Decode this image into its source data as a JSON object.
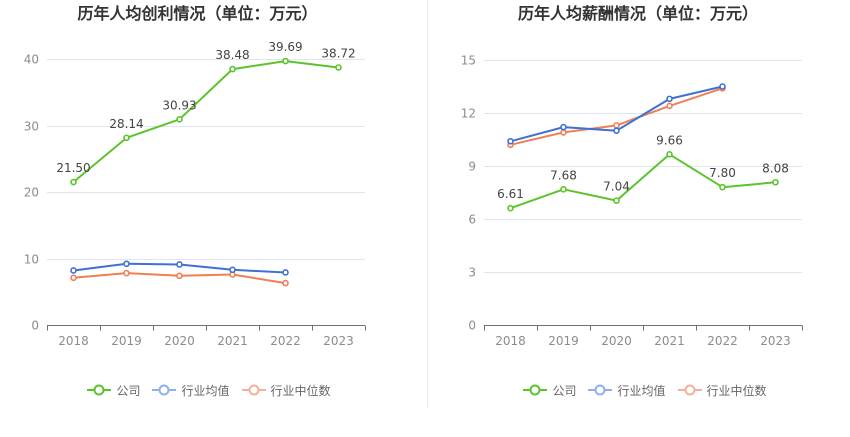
{
  "chart_data": [
    {
      "type": "line",
      "title": "历年人均创利情况（单位：万元）",
      "categories": [
        "2018",
        "2019",
        "2020",
        "2021",
        "2022",
        "2023"
      ],
      "ylim": [
        0,
        40
      ],
      "yticks": [
        0,
        10,
        20,
        30,
        40
      ],
      "grid": true,
      "legend_position": "bottom",
      "series": [
        {
          "name": "公司",
          "color": "#5cc42b",
          "legend_color": "#5cc42b",
          "data_labels": true,
          "values": [
            21.5,
            28.14,
            30.93,
            38.48,
            39.69,
            38.72
          ]
        },
        {
          "name": "行业均值",
          "color": "#3f70d4",
          "legend_color": "#8fb0ea",
          "data_labels": false,
          "values": [
            8.2,
            9.2,
            9.1,
            8.3,
            7.9,
            null
          ]
        },
        {
          "name": "行业中位数",
          "color": "#ef7f55",
          "legend_color": "#f4b299",
          "data_labels": false,
          "values": [
            7.1,
            7.8,
            7.4,
            7.6,
            6.3,
            null
          ]
        }
      ]
    },
    {
      "type": "line",
      "title": "历年人均薪酬情况（单位：万元）",
      "categories": [
        "2018",
        "2019",
        "2020",
        "2021",
        "2022",
        "2023"
      ],
      "ylim": [
        0,
        15
      ],
      "yticks": [
        0,
        3,
        6,
        9,
        12,
        15
      ],
      "grid": true,
      "legend_position": "bottom",
      "series": [
        {
          "name": "公司",
          "color": "#5cc42b",
          "legend_color": "#5cc42b",
          "data_labels": true,
          "values": [
            6.61,
            7.68,
            7.04,
            9.66,
            7.8,
            8.08
          ]
        },
        {
          "name": "行业均值",
          "color": "#3f70d4",
          "legend_color": "#8fb0ea",
          "data_labels": false,
          "values": [
            10.4,
            11.2,
            11.0,
            12.8,
            13.5,
            null
          ]
        },
        {
          "name": "行业中位数",
          "color": "#ef7f55",
          "legend_color": "#f4b299",
          "data_labels": false,
          "values": [
            10.2,
            10.9,
            11.3,
            12.4,
            13.4,
            null
          ]
        }
      ]
    }
  ]
}
